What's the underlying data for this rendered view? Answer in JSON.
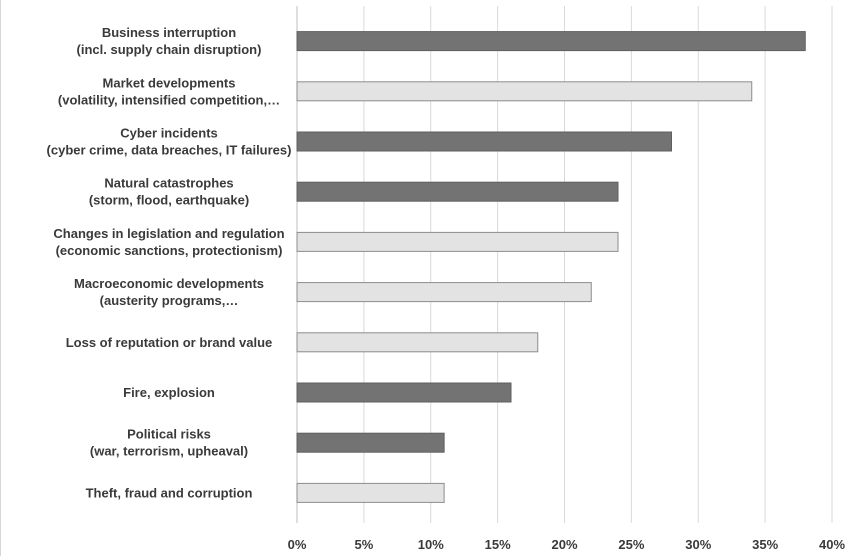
{
  "chart_data": {
    "type": "bar",
    "orientation": "horizontal",
    "title": "",
    "xlabel": "",
    "ylabel": "",
    "xlim": [
      0,
      40
    ],
    "x_ticks": [
      "0%",
      "5%",
      "10%",
      "15%",
      "20%",
      "25%",
      "30%",
      "35%",
      "40%"
    ],
    "grid": true,
    "colors": {
      "dark": "#737373",
      "light": "#e3e3e3",
      "light_stroke": "#8c8c8c",
      "dark_stroke": "#5f5f5f"
    },
    "categories": [
      [
        "Business interruption",
        "(incl. supply chain disruption)"
      ],
      [
        "Market developments",
        "(volatility, intensified competition,…"
      ],
      [
        "Cyber incidents",
        "(cyber crime, data breaches, IT failures)"
      ],
      [
        "Natural catastrophes",
        "(storm, flood, earthquake)"
      ],
      [
        "Changes in legislation and regulation",
        "(economic sanctions, protectionism)"
      ],
      [
        "Macroeconomic developments",
        "(austerity programs,…"
      ],
      [
        "Loss of reputation or brand value"
      ],
      [
        "Fire, explosion"
      ],
      [
        "Political risks",
        "(war, terrorism, upheaval)"
      ],
      [
        "Theft, fraud and corruption"
      ]
    ],
    "values": [
      38,
      34,
      28,
      24,
      24,
      22,
      18,
      16,
      11,
      11
    ],
    "shades": [
      "dark",
      "light",
      "dark",
      "dark",
      "light",
      "light",
      "light",
      "dark",
      "dark",
      "light"
    ]
  }
}
